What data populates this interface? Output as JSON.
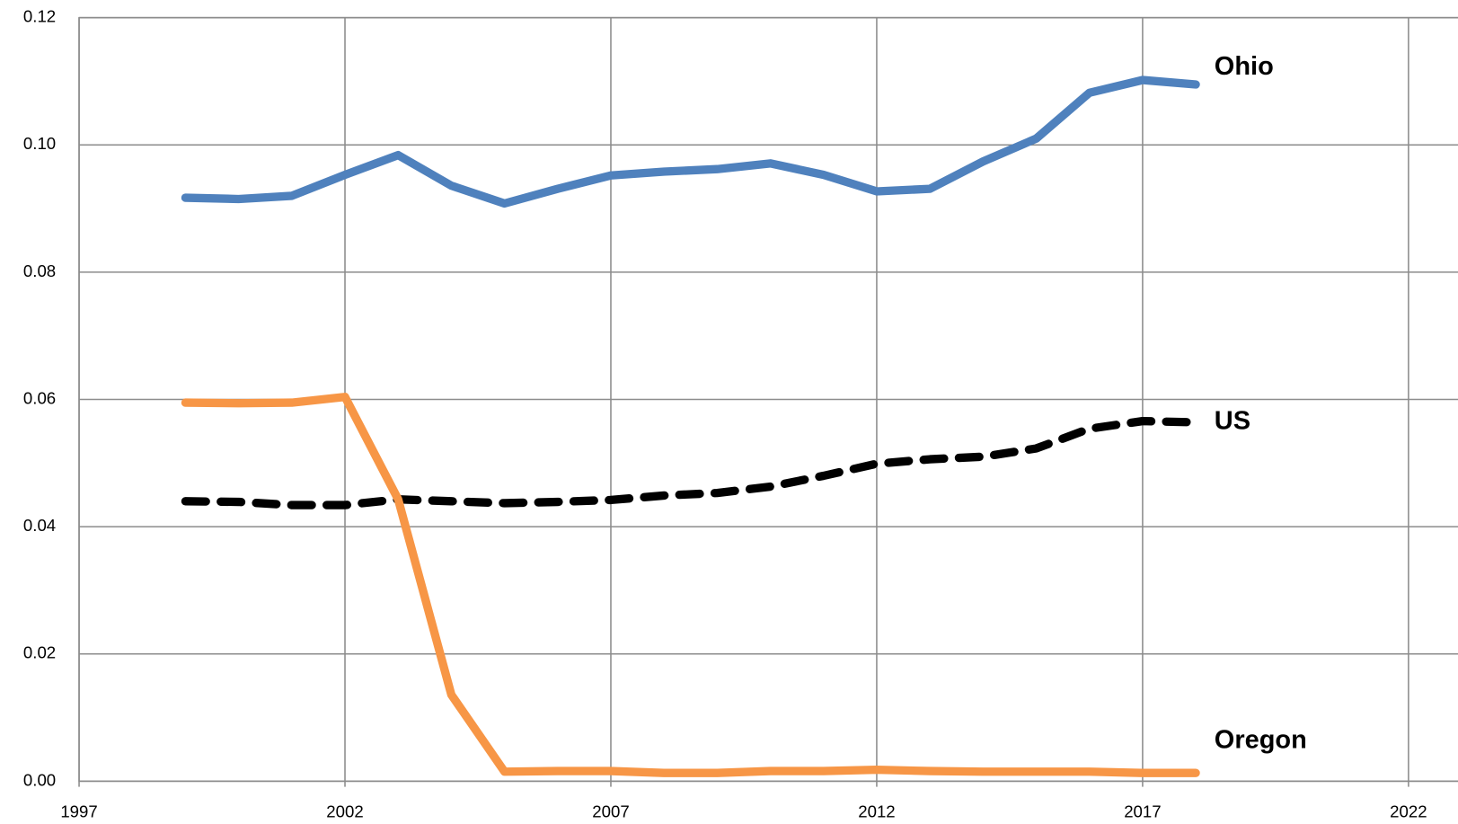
{
  "chart_data": {
    "type": "line",
    "x": [
      1999,
      2000,
      2001,
      2002,
      2003,
      2004,
      2005,
      2006,
      2007,
      2008,
      2009,
      2010,
      2011,
      2012,
      2013,
      2014,
      2015,
      2016,
      2017,
      2018
    ],
    "series": [
      {
        "name": "Ohio",
        "color": "#4f81bd",
        "line_style": "solid",
        "values": [
          0.0917,
          0.0915,
          0.092,
          0.0953,
          0.0984,
          0.0936,
          0.0908,
          0.0931,
          0.0952,
          0.0958,
          0.0962,
          0.0971,
          0.0953,
          0.0927,
          0.0931,
          0.0974,
          0.101,
          0.1082,
          0.1102,
          0.1095
        ]
      },
      {
        "name": "US",
        "color": "#000000",
        "line_style": "dashed",
        "values": [
          0.044,
          0.0439,
          0.0434,
          0.0434,
          0.0443,
          0.044,
          0.0437,
          0.0439,
          0.0442,
          0.0449,
          0.0453,
          0.0463,
          0.048,
          0.0499,
          0.0506,
          0.051,
          0.0523,
          0.0554,
          0.0566,
          0.0564
        ]
      },
      {
        "name": "Oregon",
        "color": "#f79646",
        "line_style": "solid",
        "values": [
          0.0595,
          0.0594,
          0.0595,
          0.0604,
          0.0443,
          0.0136,
          0.0015,
          0.0016,
          0.0016,
          0.0013,
          0.0013,
          0.0016,
          0.0016,
          0.0018,
          0.0016,
          0.0015,
          0.0015,
          0.0015,
          0.0013,
          0.0013
        ]
      }
    ],
    "xlim": [
      1997,
      2023
    ],
    "xticks": [
      1997,
      2002,
      2007,
      2012,
      2017,
      2022
    ],
    "ylim": [
      0,
      0.12
    ],
    "yticks": [
      {
        "value": 0,
        "label": "0.00"
      },
      0.02,
      0.04,
      0.06,
      0.08,
      {
        "value": 0.1,
        "label": "0.10"
      },
      0.12
    ],
    "grid": true
  }
}
